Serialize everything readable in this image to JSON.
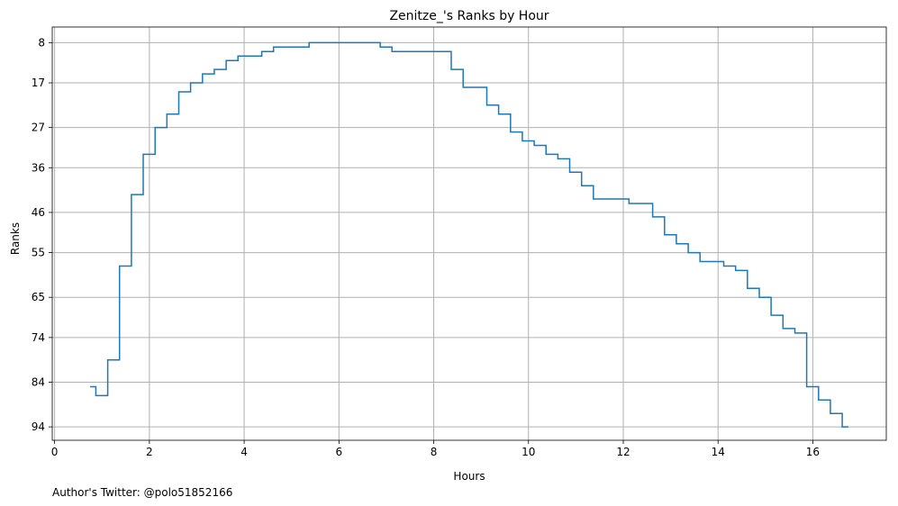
{
  "chart_data": {
    "type": "line",
    "drawstyle": "steps-post",
    "title": "Zenitze_'s Ranks by Hour",
    "xlabel": "Hours",
    "ylabel": "Ranks",
    "xlim": [
      -0.05,
      17.55
    ],
    "ylim": [
      97,
      4.5
    ],
    "y_inverted": true,
    "grid": true,
    "line_color": "#1f77b4",
    "x_ticks": [
      0,
      2,
      4,
      6,
      8,
      10,
      12,
      14,
      16
    ],
    "y_ticks": [
      8,
      17,
      27,
      36,
      46,
      55,
      65,
      74,
      84,
      94
    ],
    "series": [
      {
        "x": [
          0.75,
          0.87,
          1.12,
          1.37,
          1.62,
          1.87,
          2.12,
          2.37,
          2.62,
          2.87,
          3.12,
          3.37,
          3.62,
          3.87,
          4.12,
          4.37,
          4.62,
          4.87,
          5.12,
          5.37,
          5.62,
          5.87,
          6.12,
          6.37,
          6.62,
          6.87,
          7.12,
          7.37,
          7.62,
          7.87,
          8.12,
          8.37,
          8.62,
          8.87,
          9.12,
          9.37,
          9.62,
          9.87,
          10.12,
          10.37,
          10.62,
          10.87,
          11.12,
          11.37,
          11.62,
          11.87,
          12.12,
          12.37,
          12.62,
          12.87,
          13.12,
          13.37,
          13.62,
          13.87,
          14.12,
          14.37,
          14.62,
          14.87,
          15.12,
          15.37,
          15.62,
          15.87,
          16.12,
          16.37,
          16.62,
          16.75
        ],
        "y": [
          85,
          87,
          79,
          58,
          42,
          33,
          27,
          24,
          19,
          17,
          15,
          14,
          12,
          11,
          11,
          10,
          9,
          9,
          9,
          8,
          8,
          8,
          8,
          8,
          8,
          9,
          10,
          10,
          10,
          10,
          10,
          14,
          18,
          18,
          22,
          24,
          28,
          30,
          31,
          33,
          34,
          37,
          40,
          43,
          43,
          43,
          44,
          44,
          47,
          51,
          53,
          55,
          57,
          57,
          58,
          59,
          63,
          65,
          69,
          72,
          73,
          85,
          88,
          91,
          94,
          94
        ]
      }
    ]
  },
  "footnote": "Author's Twitter: @polo51852166"
}
